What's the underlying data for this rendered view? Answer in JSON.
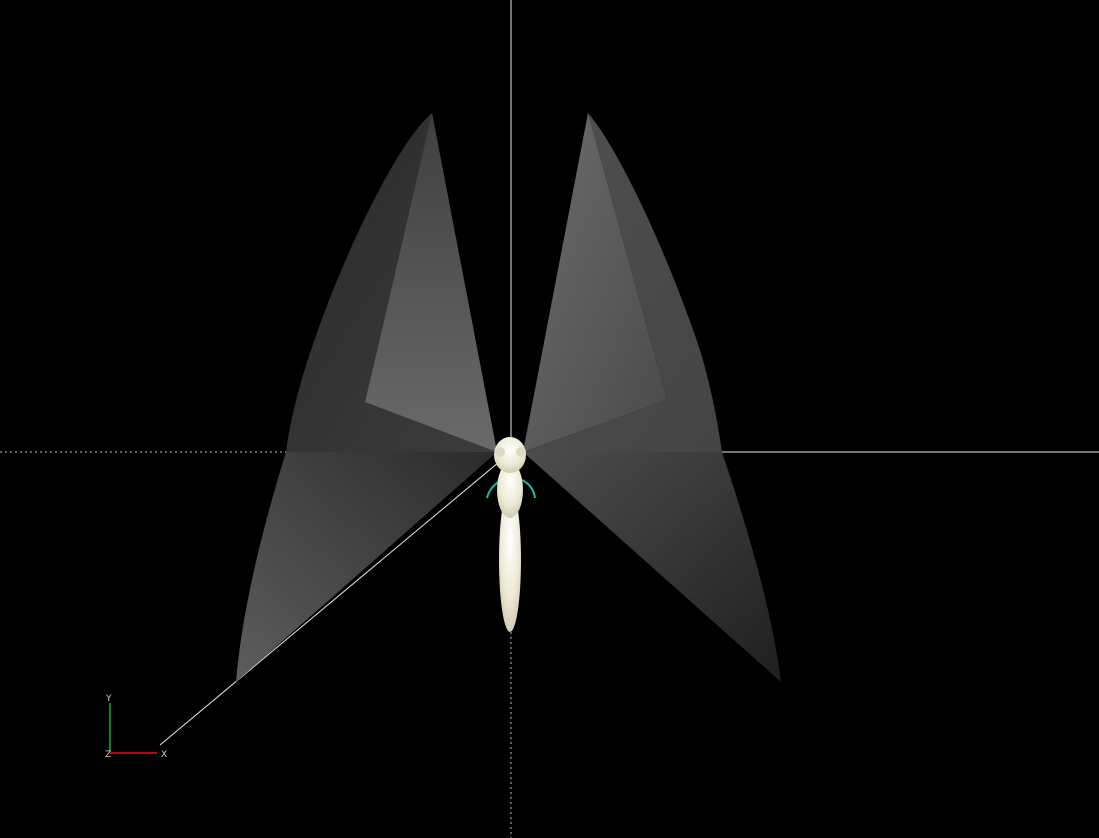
{
  "viewport": {
    "background": "#000000",
    "axes_colors": {
      "x": "#d41515",
      "y": "#1aa83a",
      "z": "#3c5cd8"
    },
    "gizmo_labels": {
      "x": "X",
      "y": "Y",
      "z": "Z"
    }
  },
  "model": {
    "wing_color": "#6a6a6a",
    "body_color": "#f0eedc",
    "antenna_color": "#2bb5a8"
  }
}
